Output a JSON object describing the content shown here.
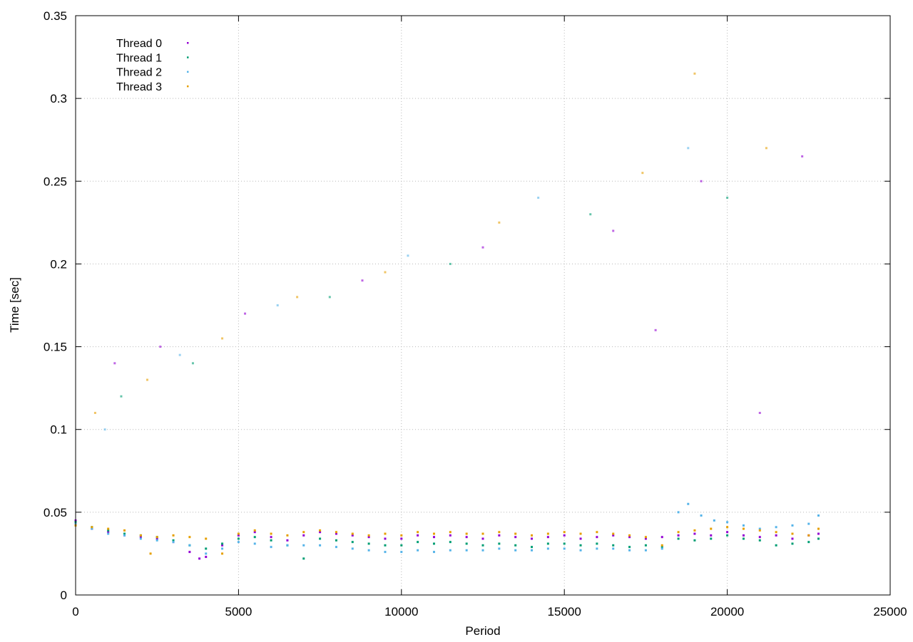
{
  "chart_data": {
    "type": "scatter",
    "title": "",
    "xlabel": "Period",
    "ylabel": "Time [sec]",
    "xlim": [
      0,
      25000
    ],
    "ylim": [
      0,
      0.35
    ],
    "x_ticks": [
      0,
      5000,
      10000,
      15000,
      20000,
      25000
    ],
    "x_tick_labels": [
      "0",
      "5000",
      "10000",
      "15000",
      "20000",
      "25000"
    ],
    "y_ticks": [
      0,
      0.05,
      0.1,
      0.15,
      0.2,
      0.25,
      0.3,
      0.35
    ],
    "y_tick_labels": [
      "0",
      "0.05",
      "0.1",
      "0.15",
      "0.2",
      "0.25",
      "0.3",
      "0.35"
    ],
    "grid": true,
    "legend_position": "top-left",
    "series": [
      {
        "name": "Thread 0",
        "color": "#9400d3",
        "points": [
          [
            0,
            0.045
          ],
          [
            500,
            0.04
          ],
          [
            1000,
            0.038
          ],
          [
            1500,
            0.036
          ],
          [
            2000,
            0.035
          ],
          [
            2500,
            0.034
          ],
          [
            3000,
            0.032
          ],
          [
            3500,
            0.026
          ],
          [
            3800,
            0.022
          ],
          [
            4000,
            0.023
          ],
          [
            4500,
            0.03
          ],
          [
            5000,
            0.036
          ],
          [
            5500,
            0.038
          ],
          [
            6000,
            0.035
          ],
          [
            6500,
            0.033
          ],
          [
            7000,
            0.036
          ],
          [
            7500,
            0.038
          ],
          [
            8000,
            0.037
          ],
          [
            8500,
            0.036
          ],
          [
            9000,
            0.035
          ],
          [
            9500,
            0.034
          ],
          [
            10000,
            0.034
          ],
          [
            10500,
            0.036
          ],
          [
            11000,
            0.035
          ],
          [
            11500,
            0.036
          ],
          [
            12000,
            0.035
          ],
          [
            12500,
            0.034
          ],
          [
            13000,
            0.036
          ],
          [
            13500,
            0.035
          ],
          [
            14000,
            0.034
          ],
          [
            14500,
            0.035
          ],
          [
            15000,
            0.036
          ],
          [
            15500,
            0.034
          ],
          [
            16000,
            0.035
          ],
          [
            16500,
            0.036
          ],
          [
            17000,
            0.035
          ],
          [
            17500,
            0.034
          ],
          [
            18000,
            0.035
          ],
          [
            18500,
            0.036
          ],
          [
            19000,
            0.037
          ],
          [
            19500,
            0.036
          ],
          [
            20000,
            0.038
          ],
          [
            20500,
            0.036
          ],
          [
            21000,
            0.035
          ],
          [
            21500,
            0.036
          ],
          [
            22000,
            0.034
          ],
          [
            22500,
            0.036
          ],
          [
            22800,
            0.037
          ],
          [
            1200,
            0.14
          ],
          [
            2600,
            0.15
          ],
          [
            5200,
            0.17
          ],
          [
            8800,
            0.19
          ],
          [
            12500,
            0.21
          ],
          [
            16500,
            0.22
          ],
          [
            19200,
            0.25
          ],
          [
            22300,
            0.265
          ],
          [
            17800,
            0.16
          ],
          [
            21000,
            0.11
          ]
        ]
      },
      {
        "name": "Thread 1",
        "color": "#009e73",
        "points": [
          [
            0,
            0.044
          ],
          [
            500,
            0.041
          ],
          [
            1000,
            0.039
          ],
          [
            1500,
            0.037
          ],
          [
            2000,
            0.036
          ],
          [
            2500,
            0.035
          ],
          [
            3000,
            0.033
          ],
          [
            3500,
            0.03
          ],
          [
            4000,
            0.028
          ],
          [
            4500,
            0.031
          ],
          [
            5000,
            0.034
          ],
          [
            5500,
            0.035
          ],
          [
            6000,
            0.033
          ],
          [
            6500,
            0.03
          ],
          [
            7000,
            0.022
          ],
          [
            7500,
            0.034
          ],
          [
            8000,
            0.033
          ],
          [
            8500,
            0.032
          ],
          [
            9000,
            0.031
          ],
          [
            9500,
            0.03
          ],
          [
            10000,
            0.03
          ],
          [
            10500,
            0.032
          ],
          [
            11000,
            0.031
          ],
          [
            11500,
            0.032
          ],
          [
            12000,
            0.031
          ],
          [
            12500,
            0.03
          ],
          [
            13000,
            0.031
          ],
          [
            13500,
            0.03
          ],
          [
            14000,
            0.029
          ],
          [
            14500,
            0.031
          ],
          [
            15000,
            0.031
          ],
          [
            15500,
            0.03
          ],
          [
            16000,
            0.031
          ],
          [
            16500,
            0.03
          ],
          [
            17000,
            0.029
          ],
          [
            17500,
            0.03
          ],
          [
            18000,
            0.029
          ],
          [
            18500,
            0.034
          ],
          [
            19000,
            0.033
          ],
          [
            19500,
            0.034
          ],
          [
            20000,
            0.036
          ],
          [
            20500,
            0.034
          ],
          [
            21000,
            0.033
          ],
          [
            21500,
            0.03
          ],
          [
            22000,
            0.031
          ],
          [
            22500,
            0.032
          ],
          [
            22800,
            0.034
          ],
          [
            1400,
            0.12
          ],
          [
            3600,
            0.14
          ],
          [
            7800,
            0.18
          ],
          [
            11500,
            0.2
          ],
          [
            15800,
            0.23
          ],
          [
            20000,
            0.24
          ]
        ]
      },
      {
        "name": "Thread 2",
        "color": "#56b4e9",
        "points": [
          [
            0,
            0.043
          ],
          [
            500,
            0.04
          ],
          [
            1000,
            0.037
          ],
          [
            1500,
            0.036
          ],
          [
            2000,
            0.034
          ],
          [
            2500,
            0.033
          ],
          [
            3000,
            0.032
          ],
          [
            3500,
            0.03
          ],
          [
            4000,
            0.025
          ],
          [
            4500,
            0.028
          ],
          [
            5000,
            0.032
          ],
          [
            5500,
            0.031
          ],
          [
            6000,
            0.029
          ],
          [
            6500,
            0.03
          ],
          [
            7000,
            0.03
          ],
          [
            7500,
            0.03
          ],
          [
            8000,
            0.029
          ],
          [
            8500,
            0.028
          ],
          [
            9000,
            0.027
          ],
          [
            9500,
            0.026
          ],
          [
            10000,
            0.026
          ],
          [
            10500,
            0.027
          ],
          [
            11000,
            0.026
          ],
          [
            11500,
            0.027
          ],
          [
            12000,
            0.027
          ],
          [
            12500,
            0.027
          ],
          [
            13000,
            0.028
          ],
          [
            13500,
            0.027
          ],
          [
            14000,
            0.027
          ],
          [
            14500,
            0.028
          ],
          [
            15000,
            0.028
          ],
          [
            15500,
            0.027
          ],
          [
            16000,
            0.028
          ],
          [
            16500,
            0.028
          ],
          [
            17000,
            0.027
          ],
          [
            17500,
            0.027
          ],
          [
            18000,
            0.028
          ],
          [
            18500,
            0.05
          ],
          [
            18800,
            0.055
          ],
          [
            19200,
            0.048
          ],
          [
            19600,
            0.045
          ],
          [
            20000,
            0.044
          ],
          [
            20500,
            0.042
          ],
          [
            21000,
            0.04
          ],
          [
            21500,
            0.041
          ],
          [
            22000,
            0.042
          ],
          [
            22500,
            0.043
          ],
          [
            22800,
            0.048
          ],
          [
            900,
            0.1
          ],
          [
            3200,
            0.145
          ],
          [
            6200,
            0.175
          ],
          [
            10200,
            0.205
          ],
          [
            14200,
            0.24
          ],
          [
            18800,
            0.27
          ]
        ]
      },
      {
        "name": "Thread 3",
        "color": "#e69f00",
        "points": [
          [
            0,
            0.042
          ],
          [
            500,
            0.041
          ],
          [
            1000,
            0.04
          ],
          [
            1500,
            0.039
          ],
          [
            2000,
            0.036
          ],
          [
            2300,
            0.025
          ],
          [
            2500,
            0.035
          ],
          [
            3000,
            0.036
          ],
          [
            3500,
            0.035
          ],
          [
            4000,
            0.034
          ],
          [
            4500,
            0.025
          ],
          [
            5000,
            0.037
          ],
          [
            5500,
            0.039
          ],
          [
            6000,
            0.037
          ],
          [
            6500,
            0.036
          ],
          [
            7000,
            0.038
          ],
          [
            7500,
            0.039
          ],
          [
            8000,
            0.038
          ],
          [
            8500,
            0.037
          ],
          [
            9000,
            0.036
          ],
          [
            9500,
            0.037
          ],
          [
            10000,
            0.036
          ],
          [
            10500,
            0.038
          ],
          [
            11000,
            0.037
          ],
          [
            11500,
            0.038
          ],
          [
            12000,
            0.037
          ],
          [
            12500,
            0.037
          ],
          [
            13000,
            0.038
          ],
          [
            13500,
            0.037
          ],
          [
            14000,
            0.036
          ],
          [
            14500,
            0.037
          ],
          [
            15000,
            0.038
          ],
          [
            15500,
            0.037
          ],
          [
            16000,
            0.038
          ],
          [
            16500,
            0.037
          ],
          [
            17000,
            0.036
          ],
          [
            17500,
            0.035
          ],
          [
            18000,
            0.03
          ],
          [
            18500,
            0.038
          ],
          [
            19000,
            0.039
          ],
          [
            19500,
            0.04
          ],
          [
            20000,
            0.041
          ],
          [
            20500,
            0.04
          ],
          [
            21000,
            0.039
          ],
          [
            21500,
            0.038
          ],
          [
            22000,
            0.037
          ],
          [
            22500,
            0.036
          ],
          [
            22800,
            0.04
          ],
          [
            600,
            0.11
          ],
          [
            2200,
            0.13
          ],
          [
            4500,
            0.155
          ],
          [
            6800,
            0.18
          ],
          [
            9500,
            0.195
          ],
          [
            13000,
            0.225
          ],
          [
            17400,
            0.255
          ],
          [
            19000,
            0.315
          ],
          [
            21200,
            0.27
          ]
        ]
      }
    ]
  }
}
